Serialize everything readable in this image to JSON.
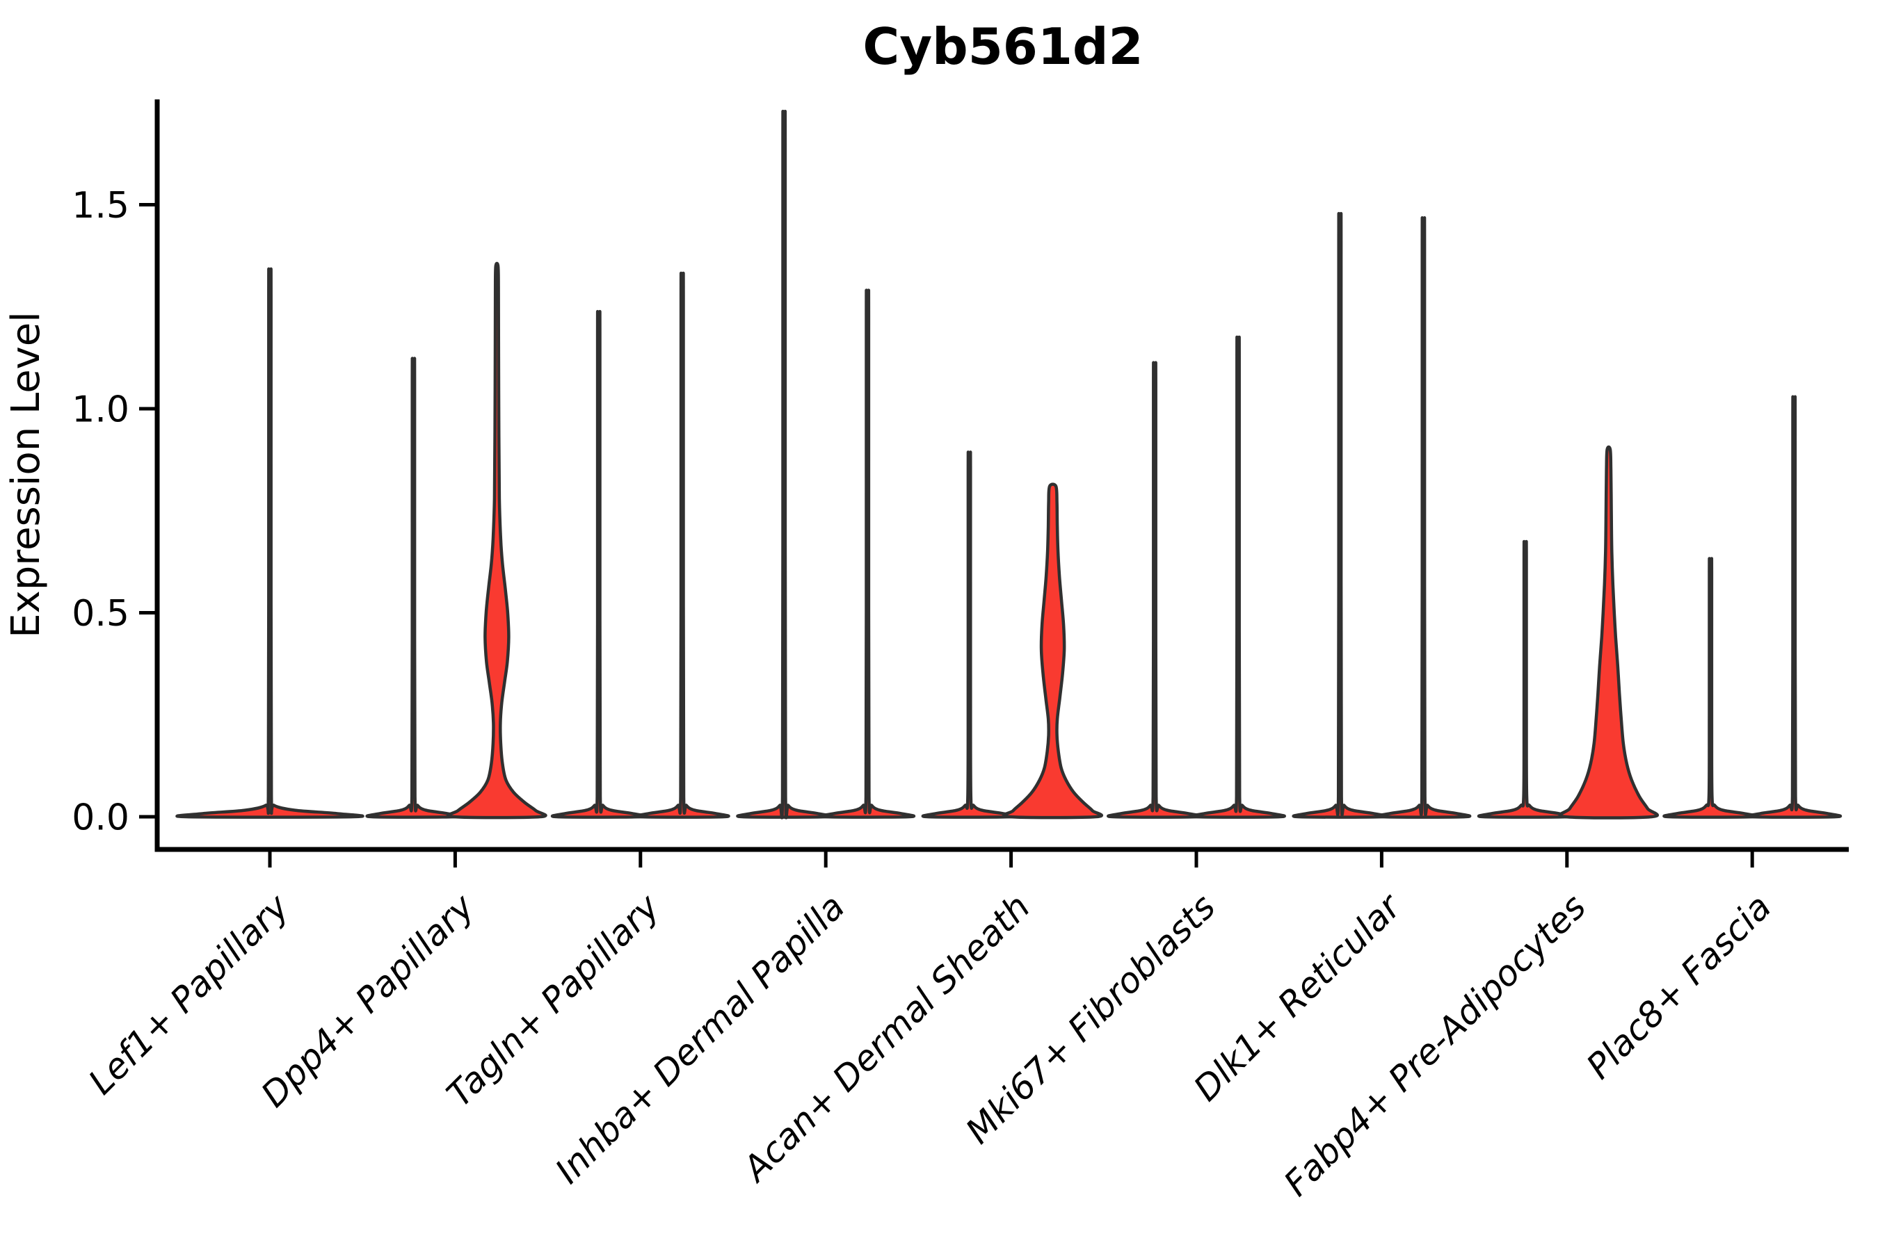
{
  "title": "Cyb561d2",
  "y_axis": {
    "label": "Expression Level",
    "tick_labels": [
      "0.0",
      "0.5",
      "1.0",
      "1.5"
    ],
    "tick_values": [
      0,
      0.5,
      1,
      1.5
    ]
  },
  "x_axis": {
    "categories": [
      "Lef1+ Papillary",
      "Dpp4+ Papillary",
      "Tagln+ Papillary",
      "Inhba+ Dermal Papilla",
      "Acan+ Dermal Sheath",
      "Mki67+ Fibroblasts",
      "Dlk1+ Reticular",
      "Fabp4+ Pre-Adipocytes",
      "Plac8+ Fascia"
    ]
  },
  "style": {
    "violin_fill": "#F93A30",
    "violin_stroke": "#303030",
    "axis_color": "#000000",
    "background": "#FFFFFF"
  },
  "chart_data": {
    "type": "violin",
    "title": "Cyb561d2",
    "ylabel": "Expression Level",
    "ylim": [
      -0.06,
      1.76
    ],
    "yticks": [
      0,
      0.5,
      1,
      1.5
    ],
    "grid": false,
    "legend": "none",
    "categories": [
      "Lef1+ Papillary",
      "Dpp4+ Papillary",
      "Tagln+ Papillary",
      "Inhba+ Dermal Papilla",
      "Acan+ Dermal Sheath",
      "Mki67+ Fibroblasts",
      "Dlk1+ Reticular",
      "Fabp4+ Pre-Adipocytes",
      "Plac8+ Fascia"
    ],
    "violins": [
      {
        "category_index": 0,
        "slot": "center",
        "max_expression": 1.3,
        "body": "spike",
        "base_half_width": 120
      },
      {
        "category_index": 1,
        "slot": "left",
        "max_expression": 1.09,
        "body": "spike",
        "base_half_width": 60
      },
      {
        "category_index": 1,
        "slot": "right",
        "max_expression": 1.35,
        "body": "profile",
        "profile_key": "dpp4_right",
        "base_half_width": 62
      },
      {
        "category_index": 2,
        "slot": "left",
        "max_expression": 1.2,
        "body": "spike",
        "base_half_width": 60
      },
      {
        "category_index": 2,
        "slot": "right",
        "max_expression": 1.29,
        "body": "spike",
        "base_half_width": 60
      },
      {
        "category_index": 3,
        "slot": "left",
        "max_expression": 1.67,
        "body": "spike",
        "base_half_width": 60
      },
      {
        "category_index": 3,
        "slot": "right",
        "max_expression": 1.25,
        "body": "spike",
        "base_half_width": 60
      },
      {
        "category_index": 4,
        "slot": "left",
        "max_expression": 0.87,
        "body": "spike",
        "base_half_width": 60
      },
      {
        "category_index": 4,
        "slot": "right",
        "max_expression": 0.81,
        "body": "profile",
        "profile_key": "acan_right",
        "base_half_width": 62
      },
      {
        "category_index": 5,
        "slot": "left",
        "max_expression": 1.08,
        "body": "spike",
        "base_half_width": 60
      },
      {
        "category_index": 5,
        "slot": "right",
        "max_expression": 1.14,
        "body": "spike",
        "base_half_width": 60
      },
      {
        "category_index": 6,
        "slot": "left",
        "max_expression": 1.43,
        "body": "spike",
        "base_half_width": 60
      },
      {
        "category_index": 6,
        "slot": "right",
        "max_expression": 1.42,
        "body": "spike",
        "base_half_width": 60
      },
      {
        "category_index": 7,
        "slot": "left",
        "max_expression": 0.66,
        "body": "spike",
        "base_half_width": 60
      },
      {
        "category_index": 7,
        "slot": "right",
        "max_expression": 0.9,
        "body": "profile",
        "profile_key": "fabp4_right",
        "base_half_width": 62
      },
      {
        "category_index": 8,
        "slot": "left",
        "max_expression": 0.62,
        "body": "spike",
        "base_half_width": 60
      },
      {
        "category_index": 8,
        "slot": "right",
        "max_expression": 1.0,
        "body": "spike",
        "base_half_width": 60
      }
    ],
    "profiles": {
      "dpp4_right": [
        [
          0,
          62
        ],
        [
          0.015,
          56
        ],
        [
          0.035,
          40
        ],
        [
          0.06,
          24
        ],
        [
          0.09,
          13
        ],
        [
          0.13,
          8
        ],
        [
          0.18,
          5.5
        ],
        [
          0.23,
          5
        ],
        [
          0.28,
          7
        ],
        [
          0.33,
          11
        ],
        [
          0.38,
          15
        ],
        [
          0.44,
          17
        ],
        [
          0.5,
          15.5
        ],
        [
          0.56,
          12
        ],
        [
          0.62,
          8
        ],
        [
          0.68,
          5.5
        ],
        [
          0.78,
          3.5
        ],
        [
          0.95,
          2.8
        ],
        [
          1.15,
          2.4
        ],
        [
          1.3,
          2.2
        ],
        [
          1.35,
          1.6
        ]
      ],
      "acan_right": [
        [
          0,
          62
        ],
        [
          0.015,
          57
        ],
        [
          0.035,
          44
        ],
        [
          0.06,
          30
        ],
        [
          0.09,
          19
        ],
        [
          0.12,
          12
        ],
        [
          0.16,
          8
        ],
        [
          0.2,
          6
        ],
        [
          0.24,
          6.5
        ],
        [
          0.29,
          10
        ],
        [
          0.35,
          14
        ],
        [
          0.41,
          16.5
        ],
        [
          0.47,
          15.5
        ],
        [
          0.53,
          12.5
        ],
        [
          0.59,
          9.5
        ],
        [
          0.65,
          7.5
        ],
        [
          0.71,
          6.5
        ],
        [
          0.77,
          6
        ],
        [
          0.81,
          4.5
        ]
      ],
      "fabp4_right": [
        [
          0,
          62
        ],
        [
          0.02,
          56
        ],
        [
          0.05,
          44
        ],
        [
          0.09,
          33
        ],
        [
          0.13,
          26
        ],
        [
          0.18,
          21
        ],
        [
          0.24,
          18
        ],
        [
          0.3,
          15.5
        ],
        [
          0.37,
          13
        ],
        [
          0.44,
          10
        ],
        [
          0.5,
          8
        ],
        [
          0.57,
          6
        ],
        [
          0.65,
          4.5
        ],
        [
          0.75,
          3.8
        ],
        [
          0.85,
          3.2
        ],
        [
          0.9,
          2.2
        ]
      ]
    }
  }
}
